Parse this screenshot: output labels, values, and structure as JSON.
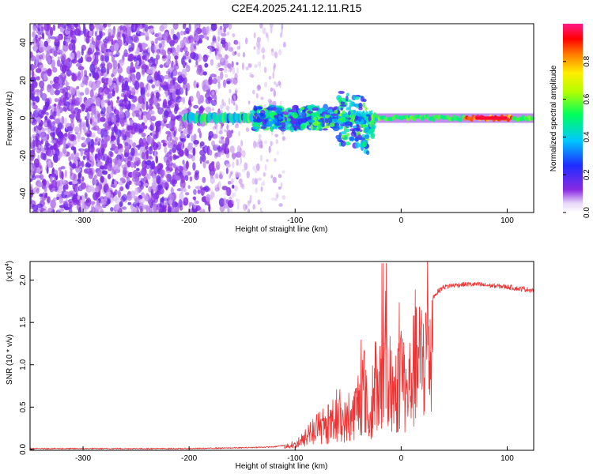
{
  "title": "C2E4.2025.241.12.11.R15",
  "chart_data": [
    {
      "type": "heatmap",
      "name": "spectrogram",
      "xlabel": "Height of straight line (km)",
      "ylabel": "Frequency (Hz)",
      "xlim": [
        -350,
        125
      ],
      "ylim": [
        -50,
        50
      ],
      "xticks": [
        -300,
        -200,
        -100,
        0,
        100
      ],
      "xtick_labels": [
        "-300",
        "-200",
        "-100",
        "0",
        "100"
      ],
      "yticks": [
        -40,
        -20,
        0,
        20,
        40
      ],
      "ytick_labels": [
        "-40",
        "-20",
        "0",
        "20",
        "40"
      ],
      "colorbar": {
        "label": "Normalized spectral amplitude",
        "range": [
          0,
          1
        ],
        "ticks": [
          0.0,
          0.2,
          0.4,
          0.6,
          0.8
        ],
        "tick_labels": [
          "0.0",
          "0.2",
          "0.4",
          "0.6",
          "0.8"
        ],
        "colormap": "rainbow (white-violet-blue-cyan-green-yellow-red-magenta)"
      },
      "description_regions": [
        {
          "x": [
            -350,
            -175
          ],
          "freq": [
            -50,
            50
          ],
          "amplitude": 0.05
        },
        {
          "x": [
            -205,
            125
          ],
          "freq": [
            -3,
            3
          ],
          "amplitude": 0.5
        },
        {
          "x": [
            -60,
            -30
          ],
          "freq": [
            -15,
            12
          ],
          "amplitude": 0.4
        },
        {
          "x": [
            70,
            100
          ],
          "freq": [
            -1,
            1
          ],
          "amplitude": 0.95
        }
      ]
    },
    {
      "type": "line",
      "name": "snr",
      "xlabel": "Height of straight line (km)",
      "ylabel": "SNR (10 * v/v)",
      "y_multiplier": "(x10",
      "y_multiplier_exp": "4",
      "xlim": [
        -350,
        125
      ],
      "ylim": [
        -0.01,
        2.22
      ],
      "xticks": [
        -300,
        -200,
        -100,
        0,
        100
      ],
      "xtick_labels": [
        "-300",
        "-200",
        "-100",
        "0",
        "100"
      ],
      "yticks": [
        0.0,
        0.5,
        1.0,
        1.5,
        2.0
      ],
      "ytick_labels": [
        "0.0",
        "0.5",
        "1.0",
        "1.5",
        "2.0"
      ],
      "color": "#f03232",
      "series": [
        {
          "name": "SNR envelope",
          "x": [
            -350,
            -300,
            -200,
            -150,
            -120,
            -110,
            -100,
            -95,
            -90,
            -85,
            -80,
            -75,
            -70,
            -65,
            -60,
            -55,
            -50,
            -45,
            -40,
            -35,
            -30,
            -25,
            -20,
            -15,
            -10,
            -5,
            0,
            5,
            10,
            15,
            20,
            25,
            30,
            35,
            40,
            50,
            60,
            70,
            80,
            90,
            100,
            110,
            120,
            125
          ],
          "y": [
            0.01,
            0.01,
            0.01,
            0.02,
            0.03,
            0.05,
            0.08,
            0.12,
            0.18,
            0.25,
            0.3,
            0.35,
            0.38,
            0.42,
            0.55,
            0.5,
            0.48,
            0.6,
            0.85,
            1.1,
            0.4,
            0.95,
            0.9,
            1.4,
            1.2,
            0.8,
            1.55,
            0.9,
            1.3,
            1.45,
            1.6,
            1.7,
            1.8,
            1.87,
            1.92,
            1.94,
            1.95,
            1.95,
            1.94,
            1.93,
            1.92,
            1.9,
            1.89,
            1.88
          ]
        }
      ]
    }
  ]
}
